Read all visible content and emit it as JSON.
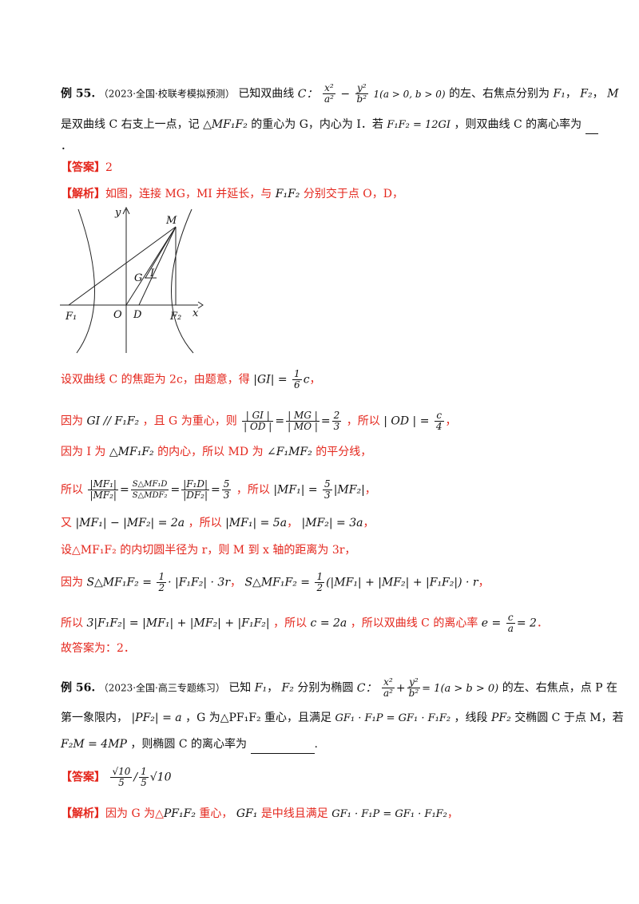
{
  "ex55": {
    "label": "例 55.",
    "source": "（2023·全国·校联考模拟预测）",
    "p1_a": "已知双曲线",
    "hyperbola_prefix": "C：",
    "hyp_x_num": "x²",
    "hyp_x_den": "a²",
    "hyp_minus": "−",
    "hyp_y_num": "y²",
    "hyp_y_den": "b²",
    "hyp_rest": " 1(a > 0, b > 0)",
    "p1_b": "的左、右焦点分别为",
    "F1": "F₁",
    "comma": "，",
    "F2": "F₂",
    "M": "M",
    "p2_a": "是双曲线 C 右支上一点，记",
    "triangle": "△MF₁F₂",
    "p2_b": "的重心为 G，内心为 I．若",
    "vec_eq": "F₁F₂ = 12GI",
    "p2_c": "，则双曲线 C 的离心率为",
    "p3": "．",
    "answer_label": "【答案】",
    "answer_value": "2",
    "analysis_label": "【解析】",
    "analysis_intro": "如图，连接 MG，MI 并延长，与",
    "analysis_F1F2": "F₁F₂",
    "analysis_intro_end": "分别交于点 O，D，"
  },
  "figure": {
    "labels": {
      "y": "y",
      "x": "x",
      "M": "M",
      "G": "G",
      "I": "I",
      "O": "O",
      "D": "D",
      "F1": "F₁",
      "F2": "F₂"
    }
  },
  "steps": {
    "s1_a": "设双曲线 C 的焦距为 2c，由题意，得",
    "s1_m": "|GI| =",
    "s1_num": "1",
    "s1_den": "6",
    "s1_c": "c",
    "s1_end": "，",
    "s2_a": "因为",
    "s2_m1": "GI // F₁F₂",
    "s2_b": "，且 G 为重心，则",
    "s2_f1n": "| GI |",
    "s2_f1d": "| OD |",
    "s2_eq": "=",
    "s2_f2n": "| MG |",
    "s2_f2d": "| MO |",
    "s2_f3n": "2",
    "s2_f3d": "3",
    "s2_c": "，所以",
    "s2_m2": "| OD | =",
    "s2_f4n": "c",
    "s2_f4d": "4",
    "s2_end": "，",
    "s3_a": "因为 I 为",
    "s3_tri": "△MF₁F₂",
    "s3_b": "的内心，所以 MD 为",
    "s3_ang": "∠F₁MF₂",
    "s3_c": "的平分线，",
    "s4_a": "所以",
    "s4_f1n": "|MF₁|",
    "s4_f1d": "|MF₂|",
    "s4_f2n": "S△MF₁D",
    "s4_f2d": "S△MDF₂",
    "s4_f3n": "|F₁D|",
    "s4_f3d": "|DF₂|",
    "s4_f4n": "5",
    "s4_f4d": "3",
    "s4_b": "，所以",
    "s4_m": "|MF₁| =",
    "s4_f5n": "5",
    "s4_f5d": "3",
    "s4_m2": "|MF₂|",
    "s4_end": "，",
    "s5_a": "又",
    "s5_m1": "|MF₁| − |MF₂| = 2a",
    "s5_b": "，所以",
    "s5_m2": "|MF₁| = 5a",
    "s5_c": "，",
    "s5_m3": "|MF₂| = 3a",
    "s5_end": "，",
    "s6": "设△MF₁F₂ 的内切圆半径为 r，则 M 到 x 轴的距离为 3r，",
    "s7_a": "因为",
    "s7_m1": "S△MF₁F₂ =",
    "s7_f1n": "1",
    "s7_f1d": "2",
    "s7_m2": "· |F₁F₂| · 3r",
    "s7_b": "，",
    "s7_m3": "S△MF₁F₂ =",
    "s7_f2n": "1",
    "s7_f2d": "2",
    "s7_m4": "(|MF₁| + |MF₂| + |F₁F₂|) · r",
    "s7_end": "，",
    "s8_a": "所以",
    "s8_m1": "3|F₁F₂| = |MF₁| + |MF₂| + |F₁F₂|",
    "s8_b": "，所以",
    "s8_m2": "c = 2a",
    "s8_c": "，所以双曲线 C 的离心率",
    "s8_m3": "e =",
    "s8_fn": "c",
    "s8_fd": "a",
    "s8_m4": "= 2",
    "s8_end": "．",
    "s9": "故答案为：2．"
  },
  "ex56": {
    "label": "例 56.",
    "source": "（2023·全国·高三专题练习）",
    "p1_a": "已知",
    "F1": "F₁",
    "comma": "，",
    "F2": "F₂",
    "p1_b": "分别为椭圆",
    "ell_prefix": "C：",
    "ell_xn": "x²",
    "ell_xd": "a²",
    "ell_plus": "+",
    "ell_yn": "y²",
    "ell_yd": "b²",
    "ell_rest": "= 1(a > b > 0)",
    "p1_c": "的左、右焦点，点 P 在",
    "p2_a": "第一象限内，",
    "p2_m1": "|PF₂| = a",
    "p2_b": "，G 为△PF₁F₂ 重心，且满足",
    "p2_m2": "GF₁ · F₁P = GF₁ · F₁F₂",
    "p2_c": "，线段",
    "p2_m3": "PF₂",
    "p2_d": "交椭圆 C 于点 M，若",
    "p3_m": "F₂M = 4MP",
    "p3_a": "，则椭圆 C 的离心率为",
    "p3_end": ".",
    "answer_label": "【答案】",
    "ans_f1n": "√10",
    "ans_f1d": "5",
    "ans_sep": "/",
    "ans_f2n": "1",
    "ans_f2d": "5",
    "ans_tail": "√10",
    "analysis_label": "【解析】",
    "analysis_a": "因为 G 为△",
    "analysis_m1": "PF₁F₂",
    "analysis_b": "重心，",
    "analysis_m2": "GF₁",
    "analysis_c": "是中线且满足",
    "analysis_m3": "GF₁ · F₁P = GF₁ · F₁F₂",
    "analysis_end": "，"
  }
}
